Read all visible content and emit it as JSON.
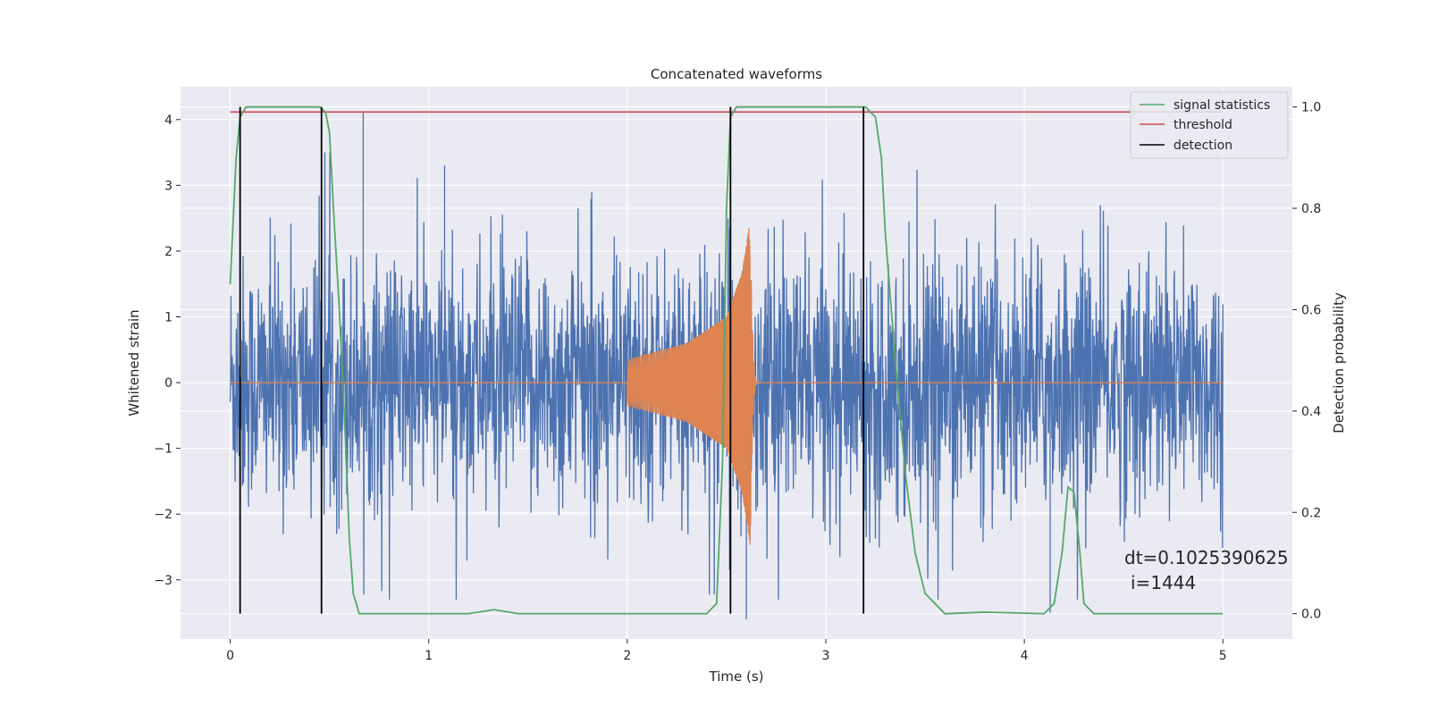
{
  "chart_data": {
    "type": "line",
    "title": "Concatenated waveforms",
    "xlabel": "Time (s)",
    "ylabel_left": "Whitened strain",
    "ylabel_right": "Detection probability",
    "xlim": [
      -0.25,
      5.35
    ],
    "ylim_left": [
      -3.9,
      4.5
    ],
    "ylim_right": [
      -0.05,
      1.04
    ],
    "xticks": [
      0,
      1,
      2,
      3,
      4,
      5
    ],
    "yticks_left": [
      -3,
      -2,
      -1,
      0,
      1,
      2,
      3,
      4
    ],
    "yticks_right": [
      0.0,
      0.2,
      0.4,
      0.6,
      0.8,
      1.0
    ],
    "xtick_labels": [
      "0",
      "1",
      "2",
      "3",
      "4",
      "5"
    ],
    "yticks_left_labels": [
      "−3",
      "−2",
      "−1",
      "0",
      "1",
      "2",
      "3",
      "4"
    ],
    "yticks_right_labels": [
      "0.0",
      "0.2",
      "0.4",
      "0.6",
      "0.8",
      "1.0"
    ],
    "grid": true,
    "legend_position": "top-right",
    "series": [
      {
        "name": "",
        "color": "#4c72b0",
        "axis": "left",
        "description_kind": "whitened noise strain",
        "x_range": [
          0,
          5
        ],
        "approx_amplitude_range": [
          -3.6,
          4.1
        ],
        "notable_peaks": [
          {
            "x": 0.67,
            "y": 4.1
          },
          {
            "x": 1.08,
            "y": 3.3
          },
          {
            "x": 2.6,
            "y": -3.6
          },
          {
            "x": 4.13,
            "y": -3.5
          }
        ]
      },
      {
        "name": "",
        "color": "#dd8452",
        "axis": "left",
        "description_kind": "injected chirp",
        "x": [
          0,
          2.0,
          2.3,
          2.5,
          2.58,
          2.62,
          2.65,
          5.0
        ],
        "envelope": [
          0,
          0.35,
          0.6,
          1.0,
          1.7,
          2.5,
          0.05,
          0
        ]
      },
      {
        "name": "signal statistics",
        "color": "#55a868",
        "axis": "right",
        "x": [
          0.0,
          0.03,
          0.05,
          0.08,
          0.12,
          0.45,
          0.48,
          0.5,
          0.52,
          0.55,
          0.58,
          0.6,
          0.62,
          0.65,
          1.2,
          1.33,
          1.45,
          2.4,
          2.45,
          2.48,
          2.5,
          2.52,
          2.55,
          3.2,
          3.25,
          3.28,
          3.3,
          3.35,
          3.4,
          3.45,
          3.5,
          3.6,
          3.8,
          4.1,
          4.15,
          4.19,
          4.22,
          4.25,
          4.28,
          4.3,
          4.35,
          5.0
        ],
        "values": [
          0.65,
          0.9,
          0.98,
          1.0,
          1.0,
          1.0,
          0.99,
          0.95,
          0.8,
          0.6,
          0.35,
          0.15,
          0.04,
          0.0,
          0.0,
          0.008,
          0.0,
          0.0,
          0.02,
          0.3,
          0.8,
          0.98,
          1.0,
          1.0,
          0.98,
          0.9,
          0.75,
          0.5,
          0.28,
          0.12,
          0.04,
          0.0,
          0.003,
          0.0,
          0.02,
          0.12,
          0.25,
          0.24,
          0.12,
          0.02,
          0.0,
          0.0
        ]
      },
      {
        "name": "threshold",
        "color": "#c44e52",
        "axis": "right",
        "x": [
          0,
          5
        ],
        "values": [
          0.99,
          0.99
        ]
      },
      {
        "name": "detection",
        "color": "#000000",
        "axis": "right",
        "type": "vlines",
        "x": [
          0.05,
          0.46,
          2.52,
          3.19
        ],
        "range": [
          0,
          1
        ]
      }
    ],
    "annotations": [
      "dt=0.1025390625",
      "i=1444"
    ]
  }
}
